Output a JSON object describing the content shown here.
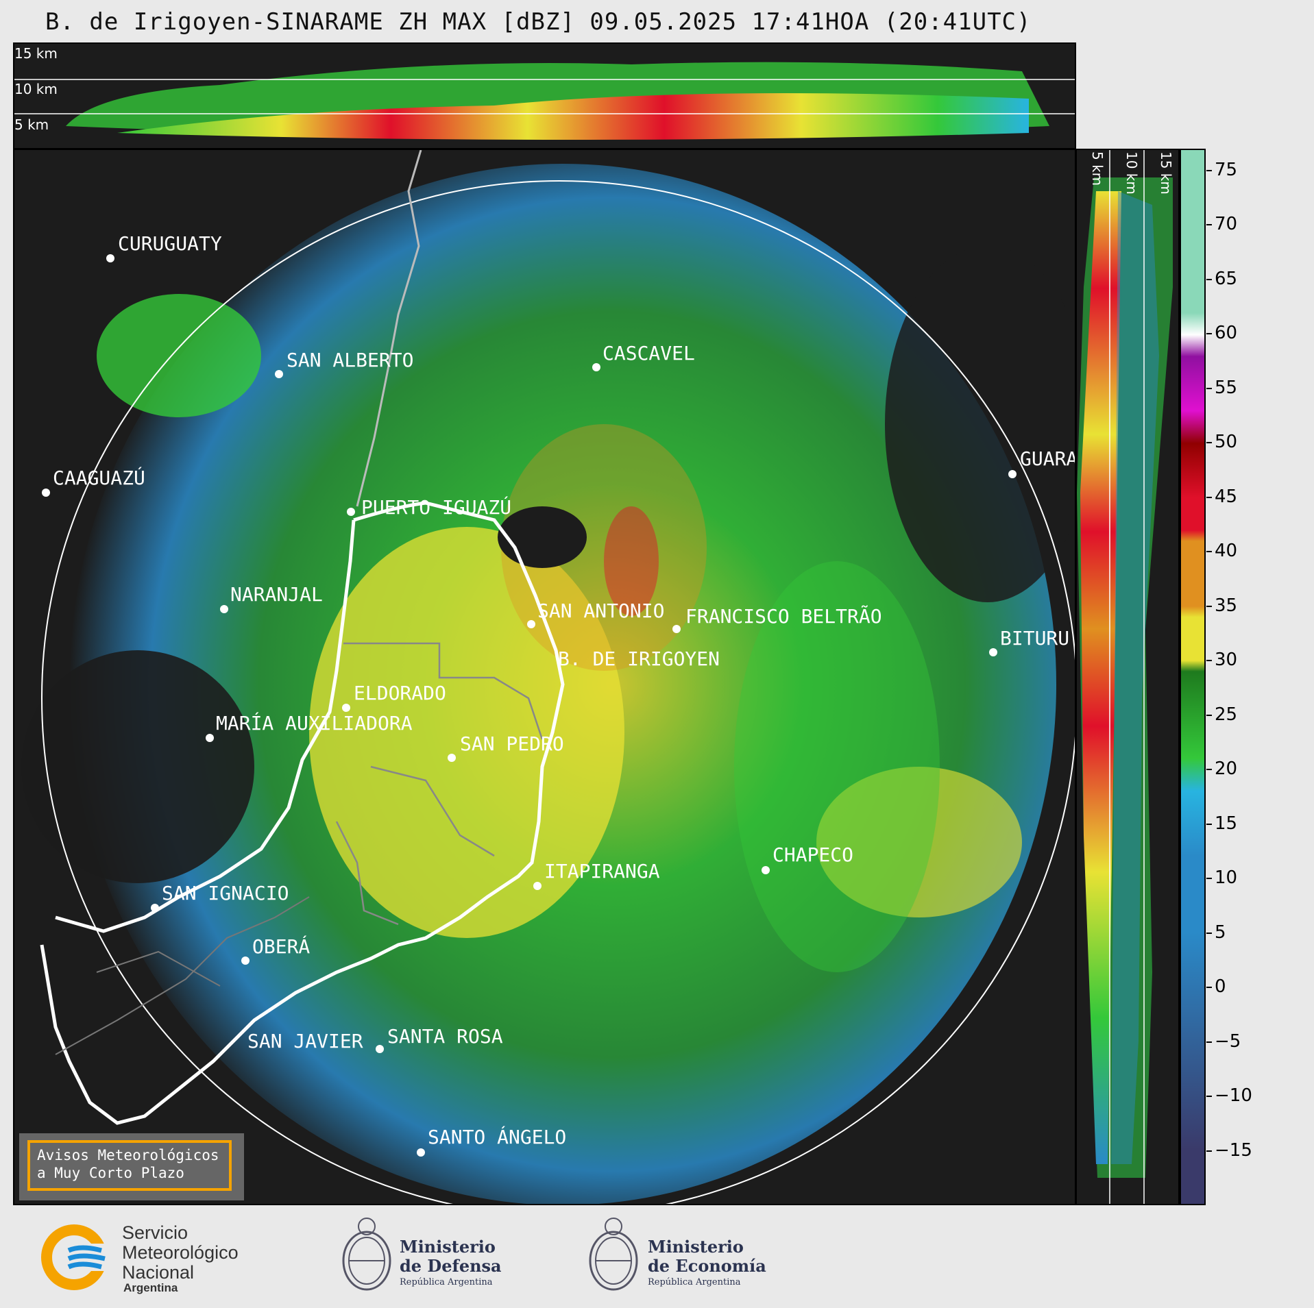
{
  "title": "B. de Irigoyen-SINARAME ZH MAX [dBZ] 09.05.2025 17:41HOA (20:41UTC)",
  "top_panel": {
    "levels": [
      "15 km",
      "10 km",
      "5 km"
    ]
  },
  "side_panel": {
    "levels": [
      "5 km",
      "10 km",
      "15 km"
    ]
  },
  "cities": [
    {
      "name": "CURUGUATY"
    },
    {
      "name": "SAN ALBERTO"
    },
    {
      "name": "CASCAVEL"
    },
    {
      "name": "CAAGUAZÚ"
    },
    {
      "name": "GUARA"
    },
    {
      "name": "PUERTO IGUAZÚ"
    },
    {
      "name": "NARANJAL"
    },
    {
      "name": "SAN ANTONIO"
    },
    {
      "name": "FRANCISCO BELTRÃO"
    },
    {
      "name": "BITURU"
    },
    {
      "name": "B. DE IRIGOYEN"
    },
    {
      "name": "ELDORADO"
    },
    {
      "name": "MARÍA AUXILIADORA"
    },
    {
      "name": "SAN PEDRO"
    },
    {
      "name": "CHAPECO"
    },
    {
      "name": "ITAPIRANGA"
    },
    {
      "name": "SAN IGNACIO"
    },
    {
      "name": "OBERÁ"
    },
    {
      "name": "SAN JAVIER"
    },
    {
      "name": "SANTA ROSA"
    },
    {
      "name": "SANTO ÁNGELO"
    }
  ],
  "colorbar": {
    "unit": "dBZ",
    "range": [
      -20,
      77
    ],
    "ticks": [
      "75",
      "70",
      "65",
      "60",
      "55",
      "50",
      "45",
      "40",
      "35",
      "30",
      "25",
      "20",
      "15",
      "10",
      "5",
      "0",
      "−5",
      "−10",
      "−15"
    ],
    "colors": {
      "low": "#3a3a6a",
      "blue": "#2a8ac8",
      "cyan": "#28b4e0",
      "green": "#34c83a",
      "dark_green": "#1e7a1e",
      "yellow": "#e8e234",
      "orange": "#e09020",
      "red": "#e0102a",
      "dark_red": "#900000",
      "magenta": "#e010d0",
      "purple": "#9010a0",
      "white": "#ffffff",
      "mint": "#8ad8b8"
    }
  },
  "warning_box": {
    "line1": "Avisos Meteorológicos",
    "line2": "a Muy Corto Plazo"
  },
  "logos": {
    "smn": {
      "line1": "Servicio",
      "line2": "Meteorológico",
      "line3": "Nacional",
      "line4": "Argentina"
    },
    "defensa": {
      "line1": "Ministerio",
      "line2": "de Defensa",
      "line3": "República Argentina"
    },
    "economia": {
      "line1": "Ministerio",
      "line2": "de Economía",
      "line3": "República Argentina"
    }
  }
}
